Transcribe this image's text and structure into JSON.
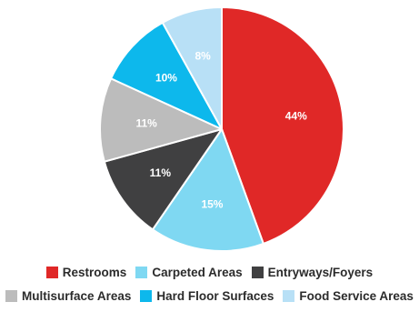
{
  "chart_data": {
    "type": "pie",
    "title": "",
    "slices": [
      {
        "label": "Restrooms",
        "value": 44,
        "value_label": "44%",
        "color": "#e02827"
      },
      {
        "label": "Carpeted Areas",
        "value": 15,
        "value_label": "15%",
        "color": "#7fd8f2"
      },
      {
        "label": "Entryways/Foyers",
        "value": 11,
        "value_label": "11%",
        "color": "#404041"
      },
      {
        "label": "Multisurface Areas",
        "value": 11,
        "value_label": "11%",
        "color": "#bcbcbc"
      },
      {
        "label": "Hard Floor Surfaces",
        "value": 10,
        "value_label": "10%",
        "color": "#0db8ec"
      },
      {
        "label": "Food Service Areas",
        "value": 8,
        "value_label": "8%",
        "color": "#b8e0f6"
      }
    ],
    "start_angle_deg": 0,
    "direction": "clockwise",
    "legend_position": "bottom"
  }
}
